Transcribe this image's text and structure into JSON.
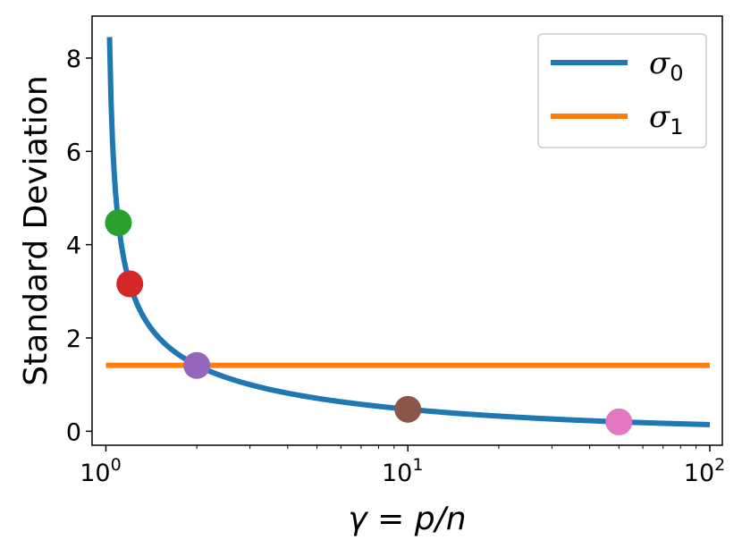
{
  "chart_data": {
    "type": "line",
    "xlabel": "γ = p/n",
    "ylabel": "Standard Deviation",
    "xscale": "log",
    "xlim": [
      0.9,
      110
    ],
    "ylim": [
      -0.3,
      8.9
    ],
    "xticks": [
      {
        "value": 1,
        "base": "10",
        "exp": "0"
      },
      {
        "value": 10,
        "base": "10",
        "exp": "1"
      },
      {
        "value": 100,
        "base": "10",
        "exp": "2"
      }
    ],
    "yticks": [
      {
        "value": 0,
        "label": "0"
      },
      {
        "value": 2,
        "label": "2"
      },
      {
        "value": 4,
        "label": "4"
      },
      {
        "value": 6,
        "label": "6"
      },
      {
        "value": 8,
        "label": "8"
      }
    ],
    "grid": false,
    "legend_position": "top-right",
    "series": [
      {
        "name": "σ",
        "subscript": "0",
        "color": "#1f77b4",
        "formula": "sqrt(2/(gamma-1))",
        "x_range": [
          1.028,
          100
        ]
      },
      {
        "name": "σ",
        "subscript": "1",
        "color": "#ff7f0e",
        "constant": 1.414,
        "x_range": [
          1.0,
          100
        ]
      }
    ],
    "markers": [
      {
        "x": 1.1,
        "y": 4.47,
        "color": "#2ca02c"
      },
      {
        "x": 1.2,
        "y": 3.16,
        "color": "#d62728"
      },
      {
        "x": 2.0,
        "y": 1.41,
        "color": "#9467bd"
      },
      {
        "x": 10.0,
        "y": 0.47,
        "color": "#8c564b"
      },
      {
        "x": 50.0,
        "y": 0.2,
        "color": "#e377c2"
      }
    ]
  }
}
